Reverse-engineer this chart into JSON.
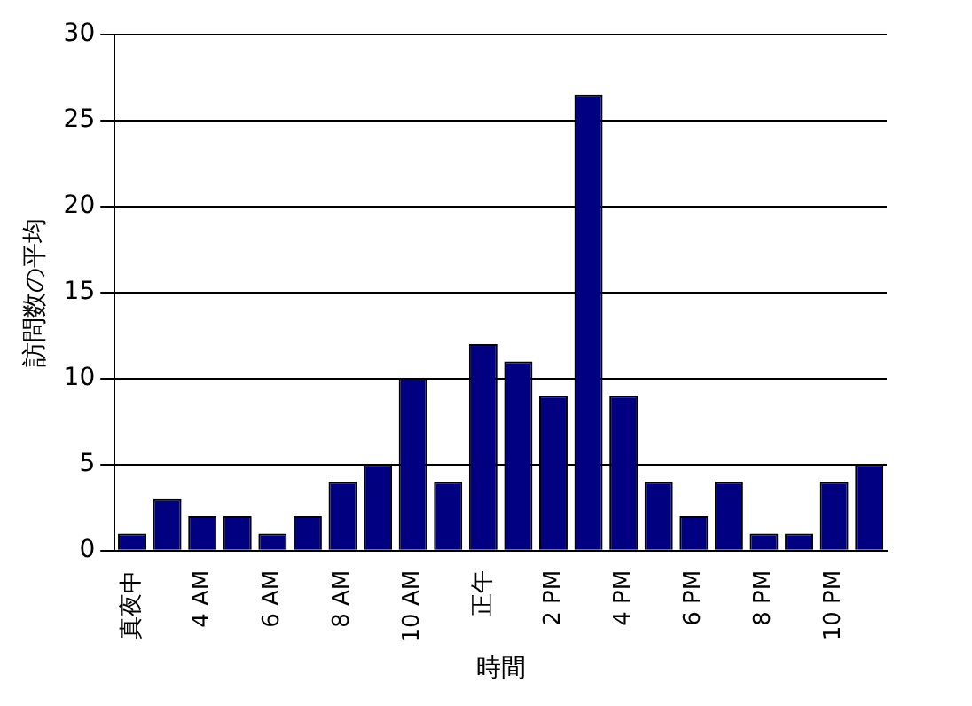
{
  "chart_data": {
    "type": "bar",
    "xlabel": "時間",
    "ylabel": "訪問数の平均",
    "categories": [
      "真夜中",
      null,
      "4 AM",
      null,
      "6 AM",
      null,
      "8 AM",
      null,
      "10 AM",
      null,
      "正午",
      null,
      "2 PM",
      null,
      "4 PM",
      null,
      "6 PM",
      null,
      "8 PM",
      null,
      "10 PM",
      null
    ],
    "values": [
      1,
      3,
      2,
      2,
      1,
      2,
      4,
      5,
      10,
      4,
      12,
      11,
      9,
      26.5,
      9,
      4,
      2,
      4,
      1,
      1,
      4,
      5
    ],
    "color": "#000080",
    "ylim": [
      0,
      30
    ],
    "yticks": [
      0,
      5,
      10,
      15,
      20,
      25,
      30
    ],
    "grid": "y",
    "legend": false
  }
}
